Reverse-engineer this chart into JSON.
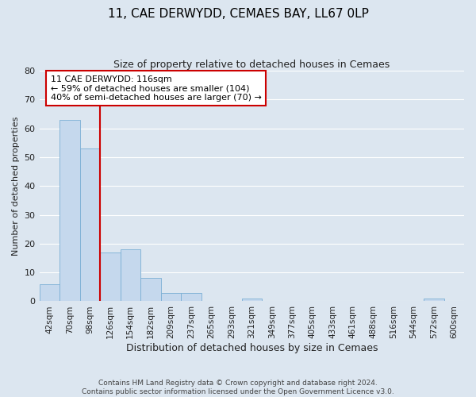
{
  "title": "11, CAE DERWYDD, CEMAES BAY, LL67 0LP",
  "subtitle": "Size of property relative to detached houses in Cemaes",
  "xlabel": "Distribution of detached houses by size in Cemaes",
  "ylabel": "Number of detached properties",
  "bar_labels": [
    "42sqm",
    "70sqm",
    "98sqm",
    "126sqm",
    "154sqm",
    "182sqm",
    "209sqm",
    "237sqm",
    "265sqm",
    "293sqm",
    "321sqm",
    "349sqm",
    "377sqm",
    "405sqm",
    "433sqm",
    "461sqm",
    "488sqm",
    "516sqm",
    "544sqm",
    "572sqm",
    "600sqm"
  ],
  "bar_values": [
    6,
    63,
    53,
    17,
    18,
    8,
    3,
    3,
    0,
    0,
    1,
    0,
    0,
    0,
    0,
    0,
    0,
    0,
    0,
    1,
    0
  ],
  "bar_color": "#c5d8ed",
  "bar_edge_color": "#7aafd4",
  "vline_x": 2.5,
  "vline_color": "#cc0000",
  "annotation_title": "11 CAE DERWYDD: 116sqm",
  "annotation_line1": "← 59% of detached houses are smaller (104)",
  "annotation_line2": "40% of semi-detached houses are larger (70) →",
  "annotation_box_color": "#ffffff",
  "annotation_box_edge": "#cc0000",
  "ylim": [
    0,
    80
  ],
  "yticks": [
    0,
    10,
    20,
    30,
    40,
    50,
    60,
    70,
    80
  ],
  "bg_color": "#dce6f0",
  "grid_color": "#ffffff",
  "footer_line1": "Contains HM Land Registry data © Crown copyright and database right 2024.",
  "footer_line2": "Contains public sector information licensed under the Open Government Licence v3.0."
}
